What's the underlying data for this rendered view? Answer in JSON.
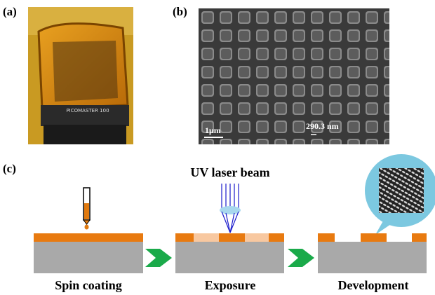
{
  "panels": {
    "a": {
      "label": "(a)",
      "machine_text": "PICOMASTER 100"
    },
    "b": {
      "label": "(b)",
      "scale_bar": "1μm",
      "feature_size": "290.3 nm"
    },
    "c": {
      "label": "(c)",
      "beam": "UV laser beam",
      "steps": [
        "Spin coating",
        "Exposure",
        "Development"
      ]
    }
  }
}
